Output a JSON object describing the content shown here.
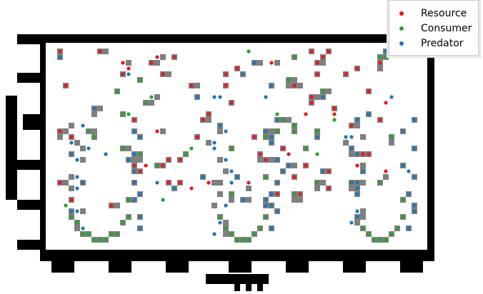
{
  "legend": {
    "items": [
      {
        "label": "Resource",
        "color": "#e41a1c"
      },
      {
        "label": "Consumer",
        "color": "#2ca02c"
      },
      {
        "label": "Predator",
        "color": "#1f77b4"
      }
    ]
  },
  "colors": {
    "frame": "#000000",
    "cell_shade": "#7f7f7f",
    "background": "#ffffff"
  },
  "board": {
    "cols": 66,
    "rows": 37
  }
}
